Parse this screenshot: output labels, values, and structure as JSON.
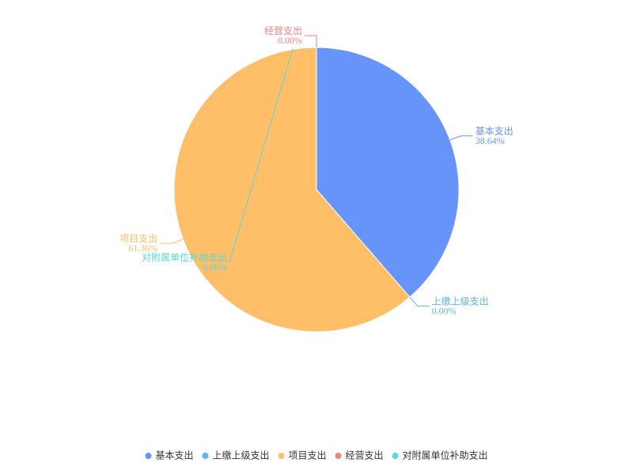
{
  "chart_data": {
    "type": "pie",
    "categories": [
      "基本支出",
      "上缴上级支出",
      "项目支出",
      "经营支出",
      "对附属单位补助支出"
    ],
    "values": [
      38.64,
      0,
      61.36,
      0,
      0
    ],
    "value_labels": [
      "38.64%",
      "0.00%",
      "61.36%",
      "0.00%",
      "0.00%"
    ],
    "colors": [
      "#6794f9",
      "#5bb6f5",
      "#ffbe68",
      "#f08383",
      "#5ad8d8"
    ],
    "legend": "bottom"
  }
}
